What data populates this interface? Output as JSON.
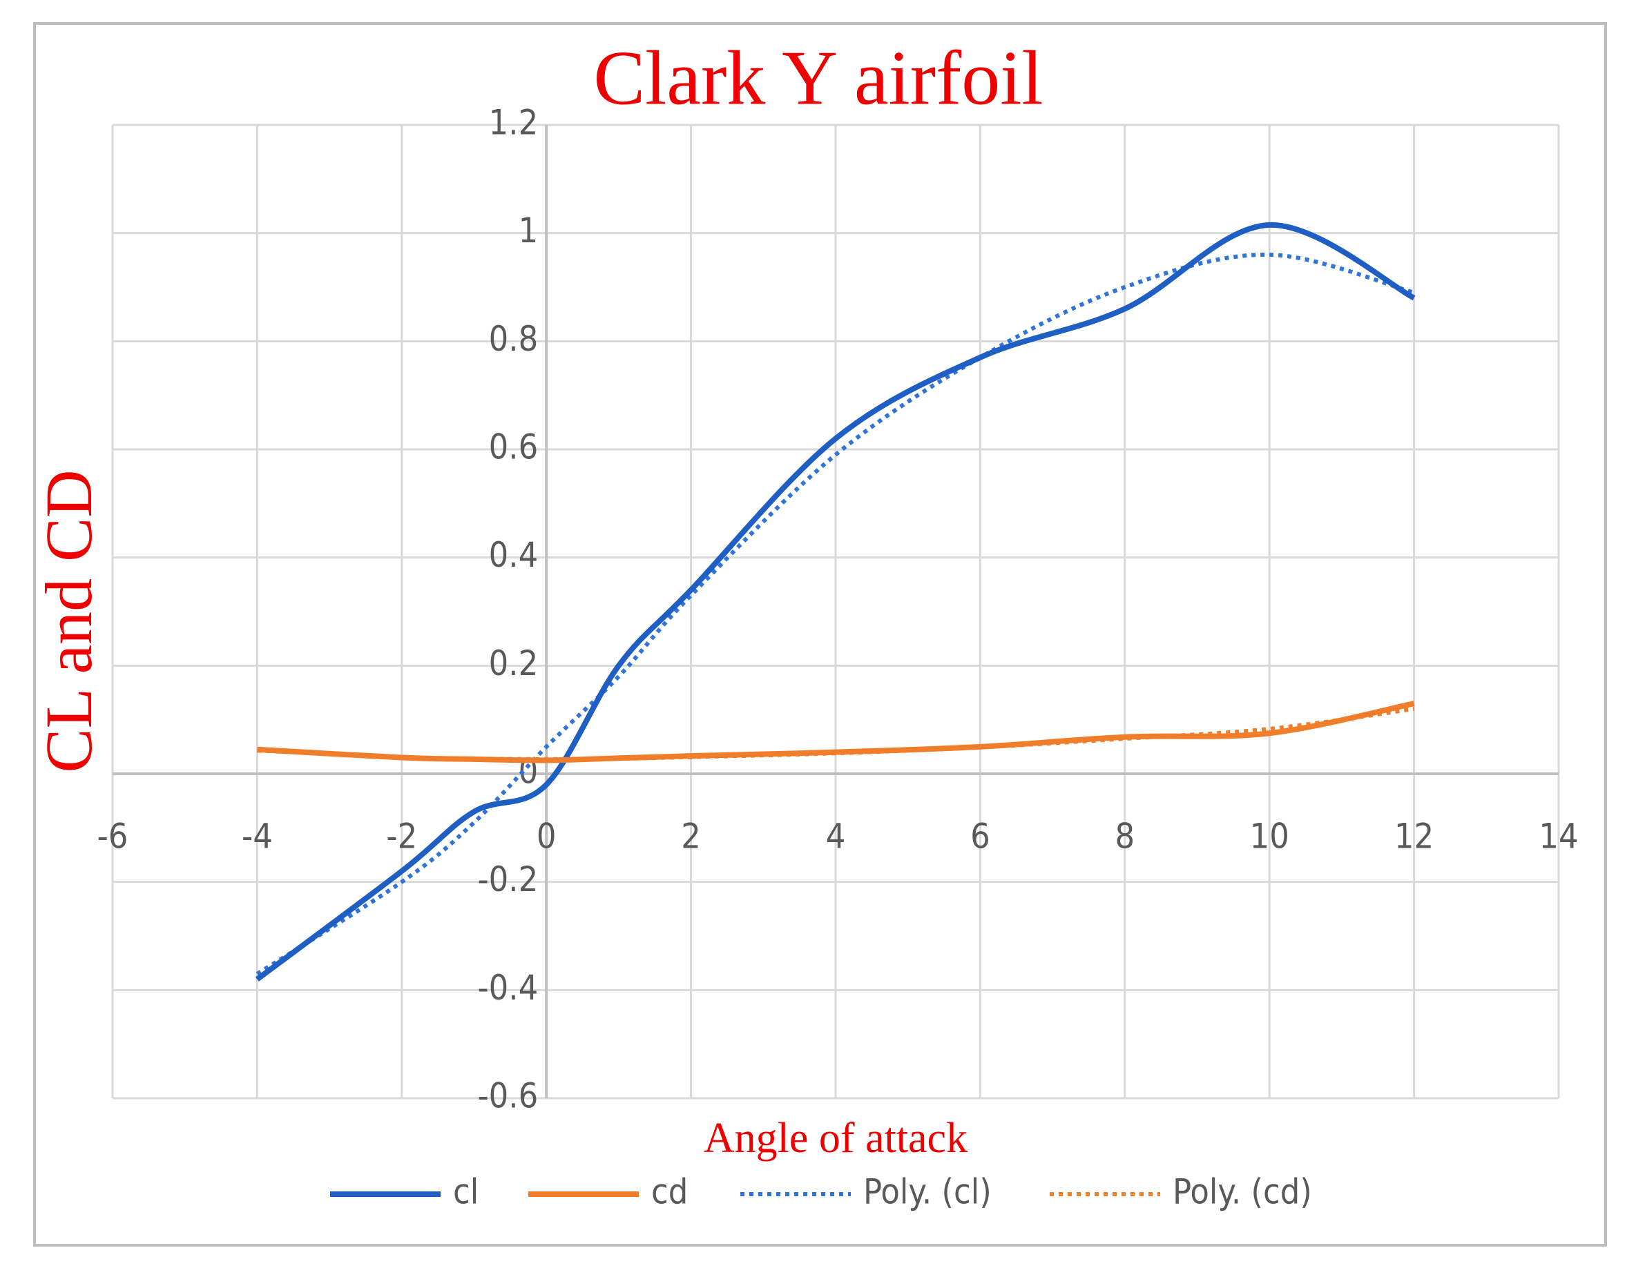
{
  "chart_data": {
    "type": "line",
    "title": "Clark Y airfoil",
    "x_label": "Angle of attack",
    "y_label": "CL and CD",
    "x": [
      -4,
      -2,
      -1,
      0,
      1,
      2,
      4,
      6,
      8,
      10,
      12
    ],
    "series": [
      {
        "name": "cl",
        "color": "#1f5fc4",
        "dash": false,
        "values": [
          -0.38,
          -0.18,
          -0.07,
          -0.02,
          0.2,
          0.34,
          0.62,
          0.77,
          0.86,
          1.015,
          0.88
        ]
      },
      {
        "name": "cd",
        "color": "#f07d2a",
        "dash": false,
        "values": [
          0.045,
          0.03,
          0.027,
          0.025,
          0.029,
          0.033,
          0.04,
          0.05,
          0.068,
          0.075,
          0.13
        ]
      },
      {
        "name": "Poly. (cl)",
        "color": "#2f74d8",
        "dash": true,
        "values": [
          -0.37,
          -0.2,
          -0.09,
          0.05,
          0.18,
          0.33,
          0.59,
          0.77,
          0.9,
          0.96,
          0.89
        ]
      },
      {
        "name": "Poly. (cd)",
        "color": "#f07d2a",
        "dash": true,
        "values": [
          0.043,
          0.031,
          0.028,
          0.027,
          0.028,
          0.031,
          0.038,
          0.049,
          0.065,
          0.083,
          0.12
        ]
      }
    ],
    "xlim": [
      -6,
      14
    ],
    "xticks": [
      -6,
      -4,
      -2,
      0,
      2,
      4,
      6,
      8,
      10,
      12,
      14
    ],
    "ylim": [
      -0.6,
      1.2
    ],
    "yticks": [
      -0.6,
      -0.4,
      -0.2,
      0,
      0.2,
      0.4,
      0.6,
      0.8,
      1,
      1.2
    ],
    "grid": true,
    "legend": "bottom"
  }
}
